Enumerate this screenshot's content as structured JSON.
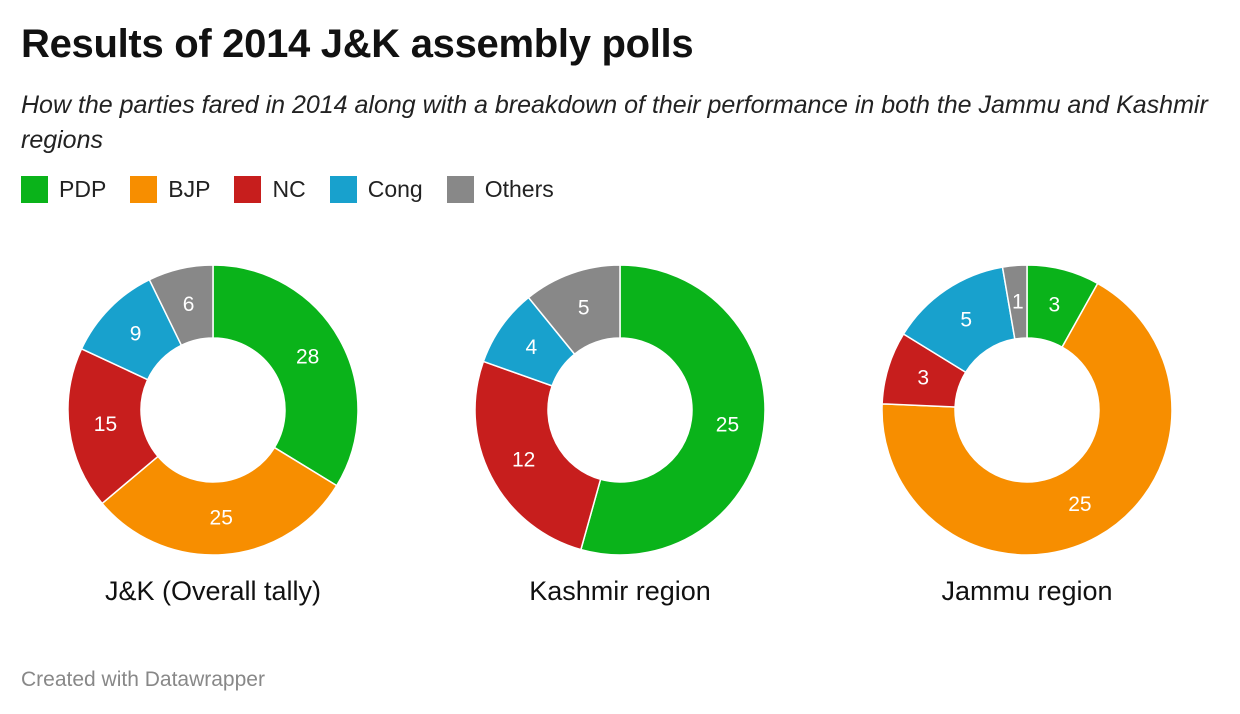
{
  "header": {
    "title": "Results of 2014 J&K assembly polls",
    "subtitle": "How the parties fared in 2014 along with a breakdown of their performance in both the Jammu and Kashmir regions"
  },
  "legend": [
    {
      "name": "PDP",
      "color": "#0ab31a"
    },
    {
      "name": "BJP",
      "color": "#f78e00"
    },
    {
      "name": "NC",
      "color": "#c71e1d"
    },
    {
      "name": "Cong",
      "color": "#18a1cd"
    },
    {
      "name": "Others",
      "color": "#888888"
    }
  ],
  "chart_data": [
    {
      "type": "pie",
      "title": "J&K (Overall tally)",
      "categories": [
        "PDP",
        "BJP",
        "NC",
        "Cong",
        "Others"
      ],
      "values": [
        28,
        25,
        15,
        9,
        6
      ]
    },
    {
      "type": "pie",
      "title": "Kashmir region",
      "categories": [
        "PDP",
        "NC",
        "Cong",
        "Others"
      ],
      "values": [
        25,
        12,
        4,
        5
      ]
    },
    {
      "type": "pie",
      "title": "Jammu region",
      "categories": [
        "PDP",
        "BJP",
        "NC",
        "Cong",
        "Others"
      ],
      "values": [
        3,
        25,
        3,
        5,
        1
      ]
    }
  ],
  "footer": {
    "credit": "Created with Datawrapper"
  }
}
